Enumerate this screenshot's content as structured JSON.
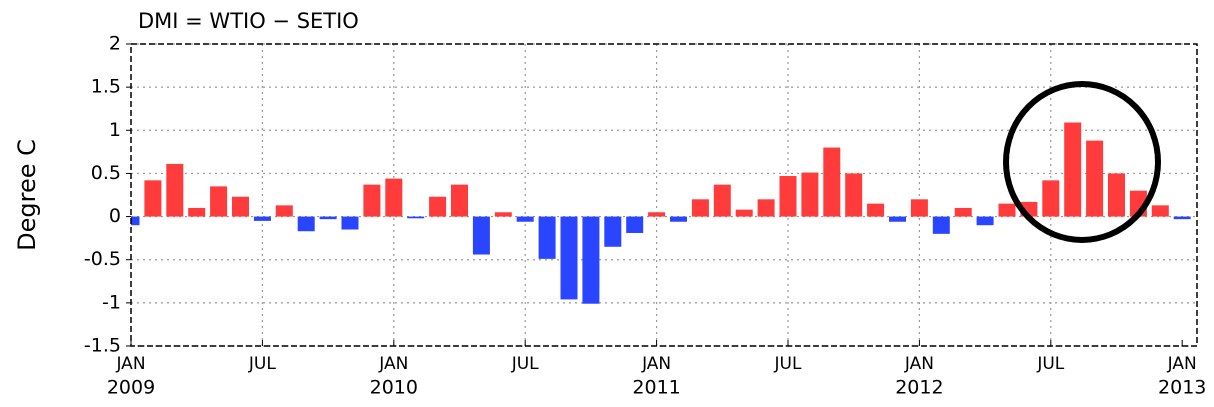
{
  "chart_data": {
    "type": "bar",
    "title": "DMI = WTIO − SETIO",
    "y_label": "Degree C",
    "categories": [
      "JAN",
      null,
      null,
      null,
      null,
      null,
      "JUL",
      null,
      null,
      null,
      null,
      null,
      "JAN",
      null,
      null,
      null,
      null,
      null,
      "JUL",
      null,
      null,
      null,
      null,
      null,
      "JAN",
      null,
      null,
      null,
      null,
      null,
      "JUL",
      null,
      null,
      null,
      null,
      null,
      "JAN",
      null,
      null,
      null,
      null,
      null,
      "JUL",
      null,
      null,
      null,
      null,
      null,
      "JAN"
    ],
    "category_years": [
      "2009",
      null,
      null,
      null,
      null,
      null,
      null,
      null,
      null,
      null,
      null,
      null,
      "2010",
      null,
      null,
      null,
      null,
      null,
      null,
      null,
      null,
      null,
      null,
      null,
      "2011",
      null,
      null,
      null,
      null,
      null,
      null,
      null,
      null,
      null,
      null,
      null,
      "2012",
      null,
      null,
      null,
      null,
      null,
      null,
      null,
      null,
      null,
      null,
      null,
      "2013"
    ],
    "values": [
      -0.1,
      0.42,
      0.61,
      0.1,
      0.35,
      0.23,
      -0.05,
      0.13,
      -0.17,
      -0.03,
      -0.15,
      0.37,
      0.44,
      -0.02,
      0.23,
      0.37,
      -0.44,
      0.05,
      -0.06,
      -0.49,
      -0.96,
      -1.01,
      -0.35,
      -0.19,
      0.05,
      -0.06,
      0.2,
      0.37,
      0.08,
      0.2,
      0.47,
      0.51,
      0.8,
      0.5,
      0.15,
      -0.06,
      0.2,
      -0.2,
      0.1,
      -0.1,
      0.15,
      0.17,
      0.42,
      1.09,
      0.88,
      0.5,
      0.3,
      0.13,
      -0.03
    ],
    "positive_color": "#ff3b3b",
    "negative_color": "#2a45ff",
    "ylim": [
      -1.5,
      2
    ],
    "yticks": [
      2,
      1.5,
      1,
      0.5,
      0,
      -0.5,
      -1,
      -1.5
    ],
    "grid": true
  }
}
